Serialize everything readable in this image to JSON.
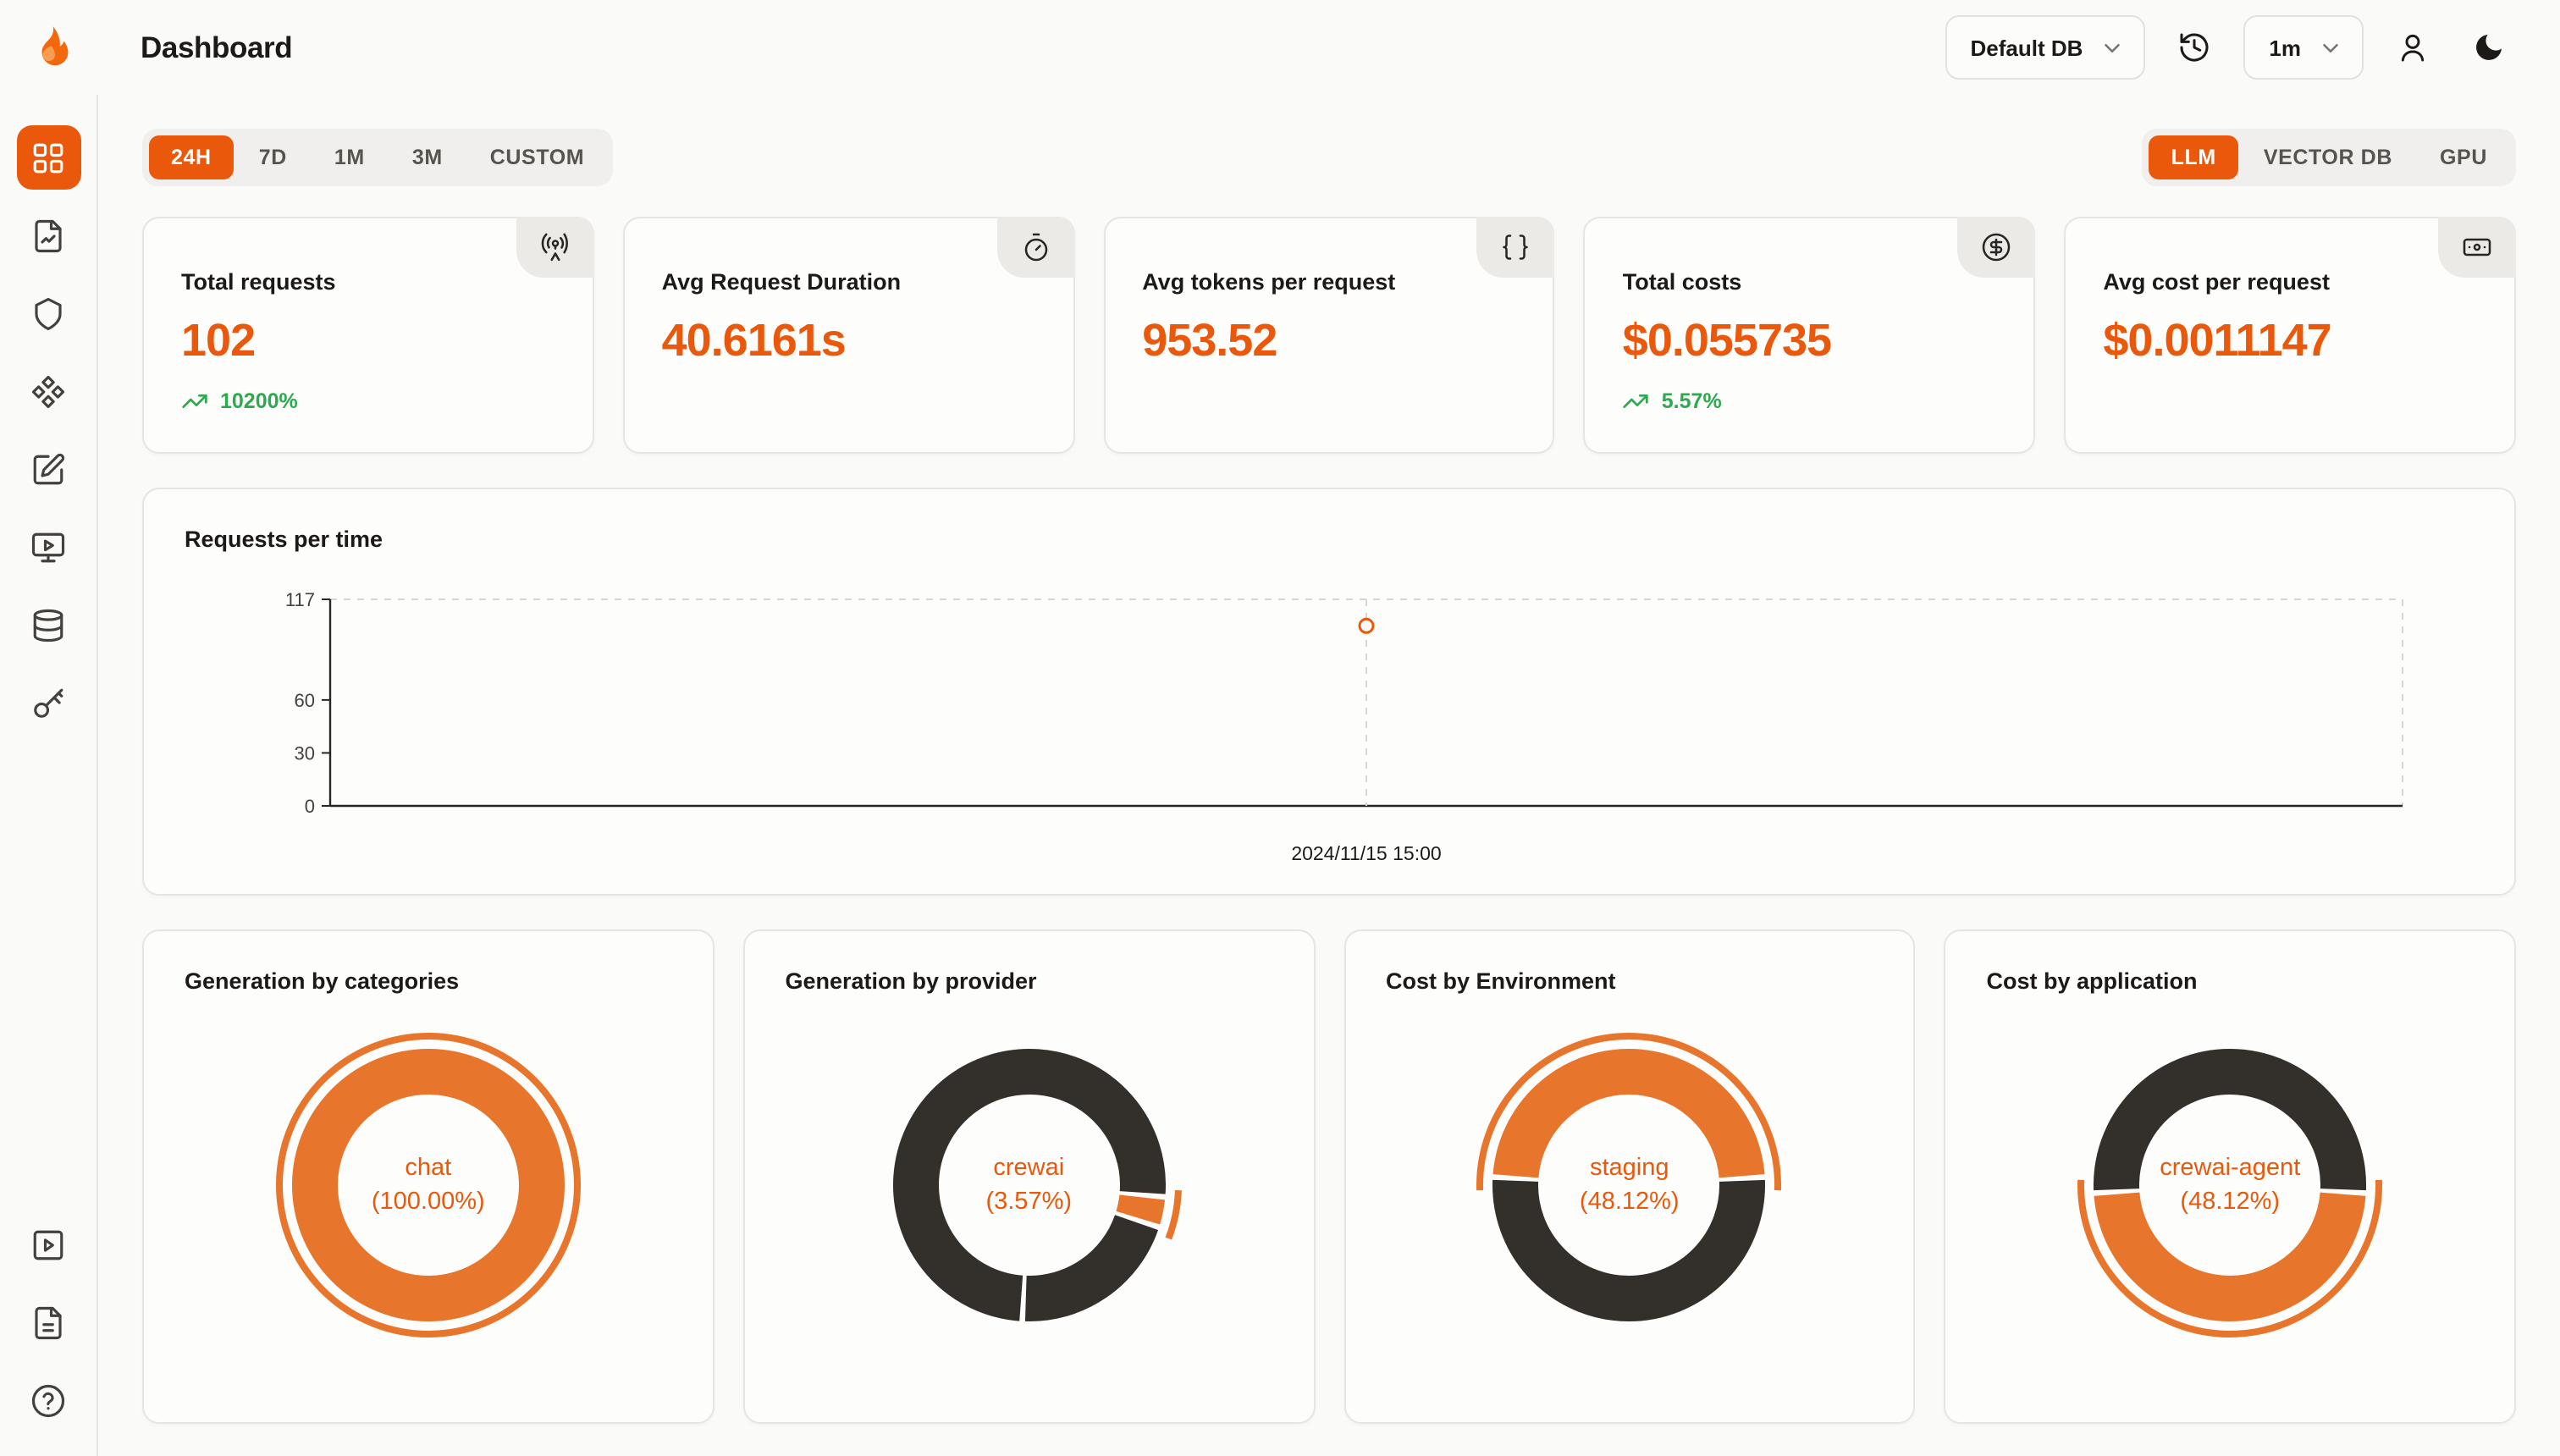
{
  "colors": {
    "accent": "#ea580c",
    "green": "#2fa94f",
    "donut_orange": "#e8752c",
    "donut_dark": "#332f2a",
    "page_bg": "#fafaf9",
    "card_bg": "#fdfdfb",
    "border": "#e7e5e4"
  },
  "header": {
    "title": "Dashboard",
    "db_selector": {
      "value": "Default DB"
    },
    "interval_selector": {
      "value": "1m"
    }
  },
  "sidebar": {
    "active": "grid",
    "top_icons": [
      "grid",
      "file-chart",
      "shield",
      "component",
      "square-pen",
      "monitor-play",
      "database",
      "key"
    ],
    "bottom_icons": [
      "square-play",
      "file-text",
      "circle-help"
    ]
  },
  "toolbar": {
    "time_ranges": [
      "24H",
      "7D",
      "1M",
      "3M",
      "CUSTOM"
    ],
    "active_time_range": "24H",
    "sources": [
      "LLM",
      "VECTOR DB",
      "GPU"
    ],
    "active_source": "LLM"
  },
  "stats": [
    {
      "label": "Total requests",
      "value": "102",
      "delta": "10200%",
      "icon": "radio-tower-icon"
    },
    {
      "label": "Avg Request Duration",
      "value": "40.6161s",
      "delta": null,
      "icon": "timer-icon"
    },
    {
      "label": "Avg tokens per request",
      "value": "953.52",
      "delta": null,
      "icon": "braces-icon"
    },
    {
      "label": "Total costs",
      "value": "$0.055735",
      "delta": "5.57%",
      "icon": "circle-dollar-icon"
    },
    {
      "label": "Avg cost per request",
      "value": "$0.0011147",
      "delta": null,
      "icon": "banknote-icon"
    }
  ],
  "chart_data": [
    {
      "type": "line",
      "title": "Requests per time",
      "xlabel": "",
      "ylabel": "",
      "y_ticks": [
        0,
        30,
        60,
        117
      ],
      "y_max": 117,
      "x_axis_labels": [
        "2024/11/15 15:00"
      ],
      "points": [
        {
          "x": "2024/11/15 15:00",
          "x_frac": 0.5,
          "y": 102
        }
      ],
      "style": {
        "grid": "dashed-border",
        "point": "hollow-circle"
      }
    },
    {
      "type": "pie",
      "title": "Generation by categories",
      "center": [
        "chat",
        "(100.00%)"
      ],
      "slices": [
        {
          "name": "chat",
          "pct": 100.0,
          "color": "donut_orange",
          "start": 0,
          "sweep": 360
        }
      ],
      "outer_arc": {
        "start": 0,
        "sweep": 360
      }
    },
    {
      "type": "pie",
      "title": "Generation by provider",
      "center": [
        "crewai",
        "(3.57%)"
      ],
      "slices": [
        {
          "name": "crewai",
          "pct": 3.57,
          "color": "donut_orange",
          "start": 95,
          "sweep": 13
        },
        {
          "name": "other",
          "pct": 20.8,
          "color": "donut_dark",
          "start": 108,
          "sweep": 75
        },
        {
          "name": "other",
          "pct": 75.6,
          "color": "donut_dark",
          "start": 183,
          "sweep": 272
        }
      ],
      "outer_arc": {
        "start": 92,
        "sweep": 19
      }
    },
    {
      "type": "pie",
      "title": "Cost by Environment",
      "center": [
        "staging",
        "(48.12%)"
      ],
      "slices": [
        {
          "name": "staging",
          "pct": 48.12,
          "color": "donut_orange",
          "start": 273.4,
          "sweep": 173.2
        },
        {
          "name": "other",
          "pct": 51.88,
          "color": "donut_dark",
          "start": 86.6,
          "sweep": 186.8
        }
      ],
      "outer_arc": {
        "start": 268,
        "sweep": 184
      }
    },
    {
      "type": "pie",
      "title": "Cost by application",
      "center": [
        "crewai-agent",
        "(48.12%)"
      ],
      "slices": [
        {
          "name": "crewai-agent",
          "pct": 48.12,
          "color": "donut_orange",
          "start": 93.4,
          "sweep": 173.2
        },
        {
          "name": "other",
          "pct": 51.88,
          "color": "donut_dark",
          "start": 266.6,
          "sweep": 186.8
        }
      ],
      "outer_arc": {
        "start": 88,
        "sweep": 184
      }
    }
  ]
}
